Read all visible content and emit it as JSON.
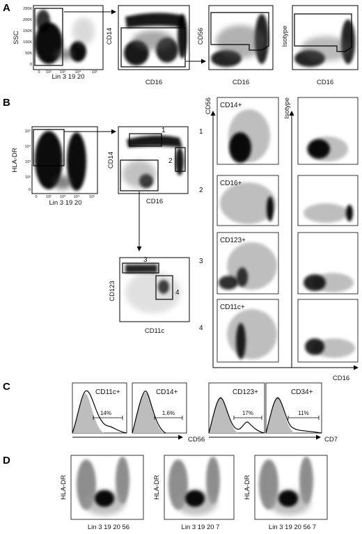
{
  "panel_a": {
    "letter": "A",
    "plot1": {
      "ylabel": "SSC",
      "xlabel": "Lin 3 19 20",
      "yticks": [
        "250K",
        "200K",
        "150K",
        "100K",
        "50K",
        "0"
      ],
      "xticks": [
        "0",
        "10²",
        "10³",
        "10⁴",
        "10⁵"
      ]
    },
    "plot2": {
      "ylabel": "CD14",
      "xlabel": "CD16"
    },
    "plot3": {
      "ylabel": "CD56",
      "xlabel": "CD16"
    },
    "plot4": {
      "ylabel": "Isotype",
      "xlabel": "CD16"
    }
  },
  "panel_b": {
    "letter": "B",
    "plot1": {
      "ylabel": "HLA-DR",
      "xlabel": "Lin 3 19 20",
      "yticks": [
        "10⁵",
        "10⁴",
        "10³",
        "10²",
        "0"
      ],
      "xticks": [
        "0",
        "10²",
        "10³",
        "10⁴",
        "10⁵"
      ]
    },
    "plot2": {
      "ylabel": "CD14",
      "xlabel": "CD16",
      "gate1": "1",
      "gate2": "2"
    },
    "plot3": {
      "ylabel": "CD123",
      "xlabel": "CD11c",
      "gate3": "3",
      "gate4": "4"
    },
    "grid": {
      "col1_axis": "CD56",
      "col2_axis": "Isotype",
      "x_axis": "CD16",
      "rows": [
        {
          "num": "1",
          "label": "CD14+"
        },
        {
          "num": "2",
          "label": "CD16+"
        },
        {
          "num": "3",
          "label": "CD123+"
        },
        {
          "num": "4",
          "label": "CD11c+"
        }
      ]
    }
  },
  "panel_c": {
    "letter": "C",
    "hists": [
      {
        "label": "CD11c+",
        "pct": "14%"
      },
      {
        "label": "CD14+",
        "pct": "1.6%"
      },
      {
        "label": "CD123+",
        "pct": "17%"
      },
      {
        "label": "CD34+",
        "pct": "11%"
      }
    ],
    "xlabel_left": "CD56",
    "xlabel_right": "CD7"
  },
  "panel_d": {
    "letter": "D",
    "plots": [
      {
        "ylabel": "HLA-DR",
        "xlabel": "Lin 3 19 20 56"
      },
      {
        "ylabel": "HLA-DR",
        "xlabel": "Lin 3 19 20 7"
      },
      {
        "ylabel": "HLA-DR",
        "xlabel": "Lin 3 19 20 56 7"
      }
    ]
  },
  "colors": {
    "dense": "#111111",
    "gray_pop": "#b8b8b8",
    "mid_gray": "#7a7a7a",
    "hist_fill": "#bdbdbd",
    "line": "#000000"
  }
}
